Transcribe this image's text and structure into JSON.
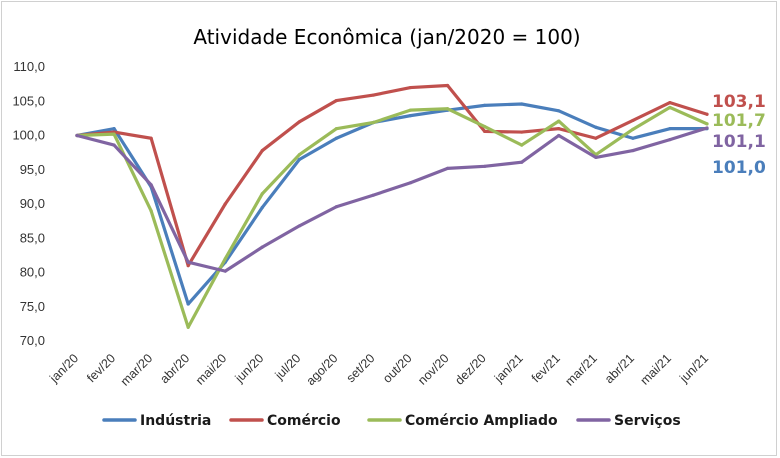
{
  "chart_data": {
    "type": "line",
    "title": "Atividade Econômica (jan/2020 = 100)",
    "xlabel": "",
    "ylabel": "",
    "ylim": [
      70,
      110
    ],
    "yticks": [
      "70,0",
      "75,0",
      "80,0",
      "85,0",
      "90,0",
      "95,0",
      "100,0",
      "105,0",
      "110,0"
    ],
    "categories": [
      "jan/20",
      "fev/20",
      "mar/20",
      "abr/20",
      "mai/20",
      "jun/20",
      "jul/20",
      "ago/20",
      "set/20",
      "out/20",
      "nov/20",
      "dez/20",
      "jan/21",
      "fev/21",
      "mar/21",
      "abr/21",
      "mai/21",
      "jun/21"
    ],
    "series": [
      {
        "name": "Indústria",
        "color": "#4a7ebb",
        "values": [
          100.0,
          101.0,
          92.5,
          75.4,
          81.5,
          89.5,
          96.5,
          99.6,
          101.9,
          102.9,
          103.7,
          104.4,
          104.6,
          103.6,
          101.2,
          99.6,
          101.0,
          101.0
        ],
        "end_label": "101,0"
      },
      {
        "name": "Comércio",
        "color": "#c0504d",
        "values": [
          100.0,
          100.5,
          99.6,
          81.0,
          90.0,
          97.8,
          102.0,
          105.1,
          105.9,
          107.0,
          107.3,
          100.6,
          100.5,
          101.0,
          99.6,
          102.2,
          104.8,
          103.1
        ],
        "end_label": "103,1"
      },
      {
        "name": "Comércio Ampliado",
        "color": "#9bbb59",
        "values": [
          100.0,
          100.2,
          89.0,
          72.0,
          82.0,
          91.5,
          97.2,
          101.0,
          101.9,
          103.7,
          103.9,
          101.3,
          98.6,
          102.1,
          97.2,
          100.9,
          104.1,
          101.7
        ],
        "end_label": "101,7"
      },
      {
        "name": "Serviços",
        "color": "#8064a2",
        "values": [
          100.0,
          98.6,
          92.8,
          81.5,
          80.2,
          83.7,
          86.8,
          89.6,
          91.3,
          93.1,
          95.2,
          95.5,
          96.1,
          100.0,
          96.8,
          97.8,
          99.4,
          101.1
        ],
        "end_label": "101,1"
      }
    ],
    "legend_position": "bottom",
    "grid": false
  }
}
